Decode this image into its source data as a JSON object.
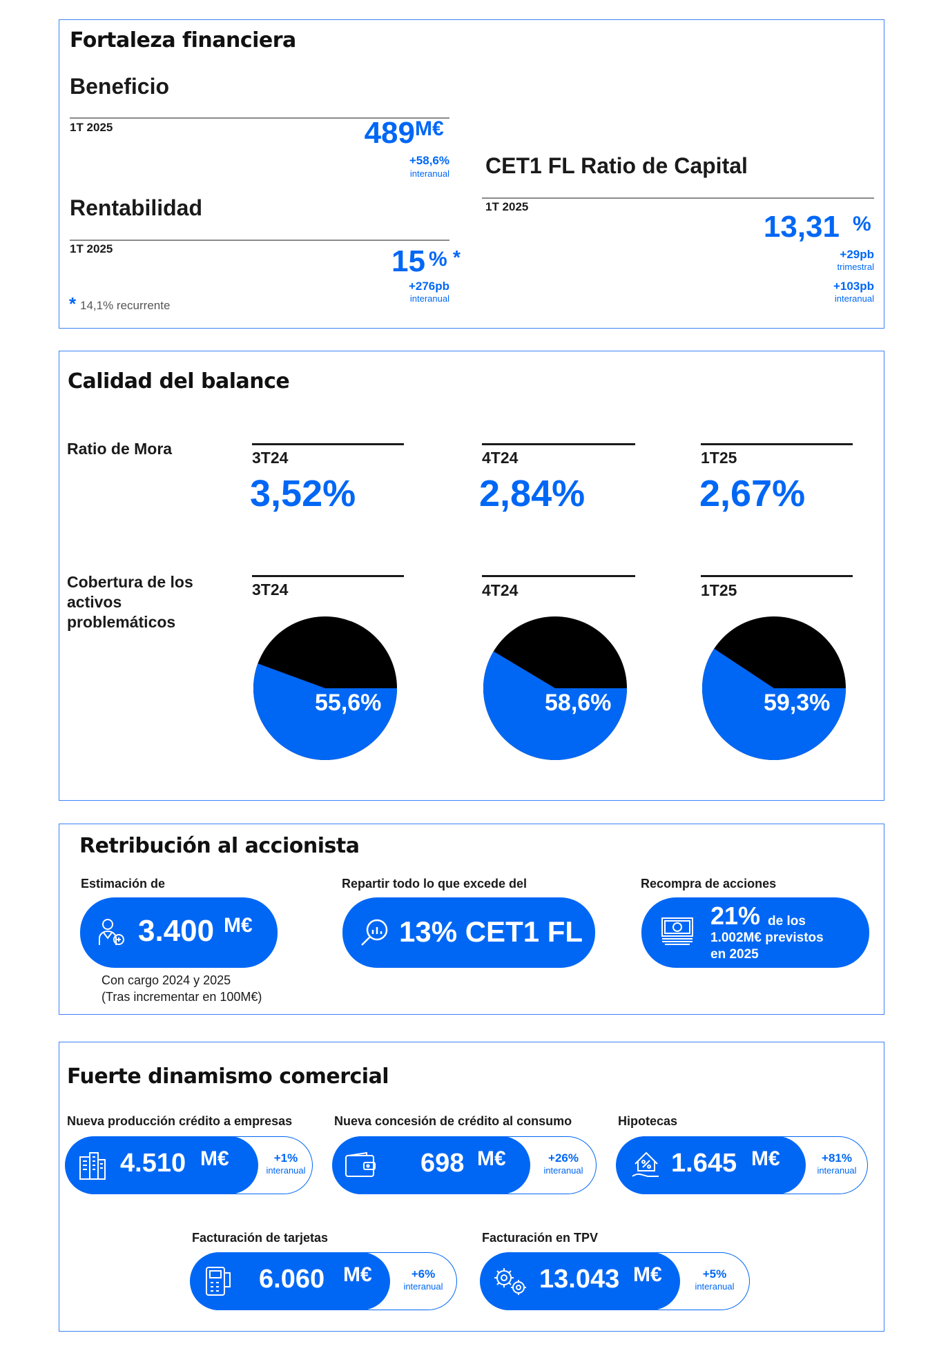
{
  "fortaleza": {
    "title": "Fortaleza financiera",
    "beneficio": {
      "title": "Beneficio",
      "period": "1T 2025",
      "value": "489",
      "unit": "M€",
      "change": "+58,6%",
      "change_label": "interanual"
    },
    "rentabilidad": {
      "title": "Rentabilidad",
      "period": "1T 2025",
      "value": "15",
      "unit": "%",
      "asterisk": "*",
      "change": "+276pb",
      "change_label": "interanual",
      "footnote_mark": "*",
      "footnote": "14,1% recurrente"
    },
    "cet1": {
      "title": "CET1 FL Ratio de Capital",
      "period": "1T 2025",
      "value": "13,31",
      "unit": "%",
      "change1": "+29pb",
      "change1_label": "trimestral",
      "change2": "+103pb",
      "change2_label": "interanual"
    }
  },
  "calidad": {
    "title": "Calidad del balance",
    "mora_label": "Ratio de Mora",
    "mora": [
      {
        "period": "3T24",
        "value": "3,52%"
      },
      {
        "period": "4T24",
        "value": "2,84%"
      },
      {
        "period": "1T25",
        "value": "2,67%"
      }
    ],
    "cobertura_label": "Cobertura de los activos problemáticos",
    "cobertura": [
      {
        "period": "3T24",
        "label": "55,6%",
        "value": 55.6
      },
      {
        "period": "4T24",
        "label": "58,6%",
        "value": 58.6
      },
      {
        "period": "1T25",
        "label": "59,3%",
        "value": 59.3
      }
    ],
    "colors": {
      "covered": "#0067f5",
      "rest": "#000000"
    }
  },
  "retribucion": {
    "title": "Retribución al accionista",
    "estimacion": {
      "label": "Estimación de",
      "value": "3.400",
      "unit": "M€",
      "note1": "Con cargo 2024 y 2025",
      "note2": "(Tras incrementar en 100M€)",
      "icon": "investor-icon"
    },
    "repartir": {
      "label": "Repartir todo lo que excede del",
      "value": "13% CET1 FL",
      "icon": "magnifier-chart-icon"
    },
    "recompra": {
      "label": "Recompra de acciones",
      "value": "21%",
      "text1": "de los",
      "text2": "1.002M€ previstos",
      "text3": "en 2025",
      "icon": "banknote-icon"
    }
  },
  "comercial": {
    "title": "Fuerte dinamismo comercial",
    "items": [
      {
        "label": "Nueva producción crédito a empresas",
        "value": "4.510",
        "unit": "M€",
        "change": "+1%",
        "change_label": "interanual",
        "icon": "buildings-icon"
      },
      {
        "label": "Nueva concesión de crédito al consumo",
        "value": "698",
        "unit": "M€",
        "change": "+26%",
        "change_label": "interanual",
        "icon": "wallet-icon"
      },
      {
        "label": "Hipotecas",
        "value": "1.645",
        "unit": "M€",
        "change": "+81%",
        "change_label": "interanual",
        "icon": "house-percent-icon"
      },
      {
        "label": "Facturación de tarjetas",
        "value": "6.060",
        "unit": "M€",
        "change": "+6%",
        "change_label": "interanual",
        "icon": "card-terminal-icon"
      },
      {
        "label": "Facturación en TPV",
        "value": "13.043",
        "unit": "M€",
        "change": "+5%",
        "change_label": "interanual",
        "icon": "gears-icon"
      }
    ]
  }
}
